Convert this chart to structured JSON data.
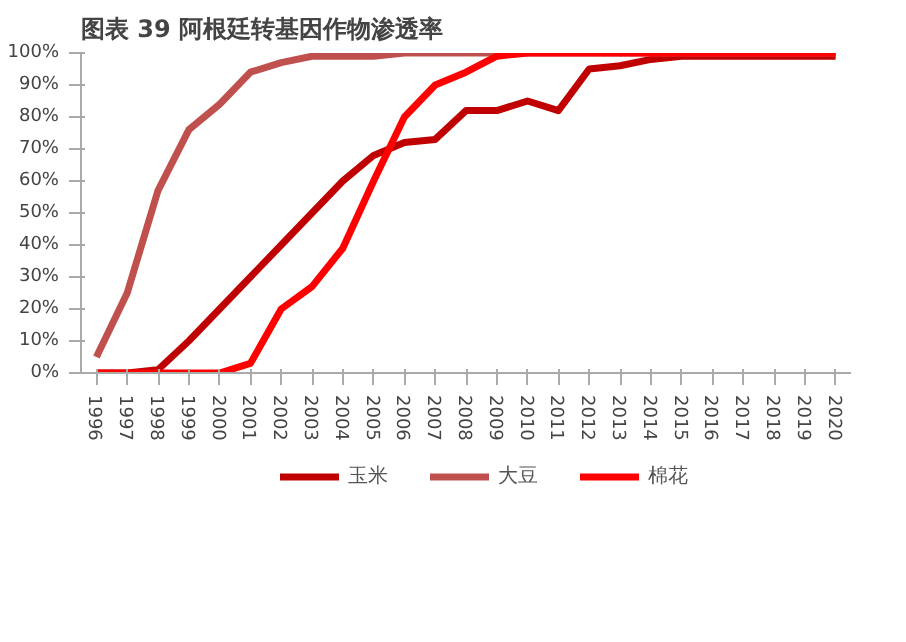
{
  "chart_data": {
    "type": "line",
    "title": "图表 39 阿根廷转基因作物渗透率",
    "categories": [
      "1996",
      "1997",
      "1998",
      "1999",
      "2000",
      "2001",
      "2002",
      "2003",
      "2004",
      "2005",
      "2006",
      "2007",
      "2008",
      "2009",
      "2010",
      "2011",
      "2012",
      "2013",
      "2014",
      "2015",
      "2016",
      "2017",
      "2018",
      "2019",
      "2020"
    ],
    "series": [
      {
        "name": "玉米",
        "color": "#c00000",
        "values": [
          0,
          0,
          1,
          10,
          20,
          30,
          40,
          50,
          60,
          68,
          72,
          73,
          82,
          82,
          85,
          82,
          95,
          96,
          98,
          99,
          99,
          99,
          99,
          99,
          99
        ]
      },
      {
        "name": "大豆",
        "color": "#c0504d",
        "values": [
          5,
          25,
          57,
          76,
          84,
          94,
          97,
          99,
          99,
          99,
          100,
          100,
          100,
          100,
          100,
          100,
          100,
          100,
          100,
          100,
          100,
          100,
          100,
          100,
          100
        ]
      },
      {
        "name": "棉花",
        "color": "#ff0000",
        "values": [
          0,
          0,
          0,
          0,
          0,
          3,
          20,
          27,
          39,
          60,
          80,
          90,
          94,
          99,
          100,
          100,
          100,
          100,
          100,
          100,
          100,
          100,
          100,
          100,
          100
        ]
      }
    ],
    "ylim": [
      0,
      100
    ],
    "yticks": [
      {
        "value": 0,
        "label": "0%"
      },
      {
        "value": 10,
        "label": "10%"
      },
      {
        "value": 20,
        "label": "20%"
      },
      {
        "value": 30,
        "label": "30%"
      },
      {
        "value": 40,
        "label": "40%"
      },
      {
        "value": 50,
        "label": "50%"
      },
      {
        "value": 60,
        "label": "60%"
      },
      {
        "value": 70,
        "label": "70%"
      },
      {
        "value": 80,
        "label": "80%"
      },
      {
        "value": 90,
        "label": "90%"
      },
      {
        "value": 100,
        "label": "100%"
      }
    ],
    "grid": false,
    "legend": "bottom"
  }
}
